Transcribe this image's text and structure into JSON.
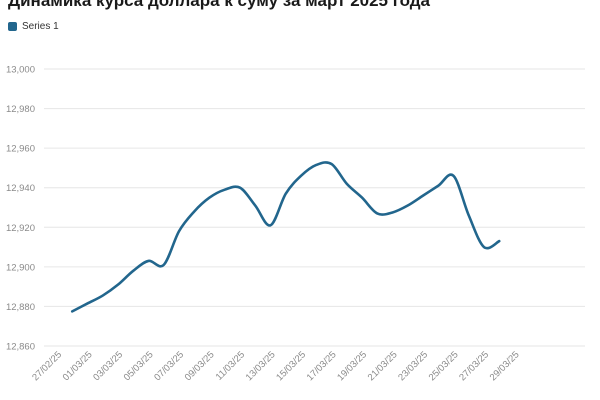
{
  "chart_data": {
    "type": "line",
    "title": "Динамика курса доллара к суму за март 2025 года",
    "legend_position": "top-left",
    "grid": true,
    "colors": {
      "series": "#22668d"
    },
    "x_ticks": [
      "27/02/25",
      "01/03/25",
      "03/03/25",
      "05/03/25",
      "07/03/25",
      "09/03/25",
      "11/03/25",
      "13/03/25",
      "15/03/25",
      "17/03/25",
      "19/03/25",
      "21/03/25",
      "23/03/25",
      "25/03/25",
      "27/03/25",
      "29/03/25"
    ],
    "y_ticks": [
      "12,860",
      "12,880",
      "12,900",
      "12,920",
      "12,940",
      "12,960",
      "12,980",
      "13,000"
    ],
    "ylim": [
      12860,
      13000
    ],
    "xlim": [
      "27/02/25",
      "29/03/25"
    ],
    "series": [
      {
        "name": "Series 1",
        "x": [
          "28/02/25",
          "01/03/25",
          "02/03/25",
          "03/03/25",
          "04/03/25",
          "05/03/25",
          "06/03/25",
          "07/03/25",
          "08/03/25",
          "09/03/25",
          "10/03/25",
          "11/03/25",
          "12/03/25",
          "13/03/25",
          "14/03/25",
          "15/03/25",
          "16/03/25",
          "17/03/25",
          "18/03/25",
          "19/03/25",
          "20/03/25",
          "21/03/25",
          "22/03/25",
          "23/03/25",
          "24/03/25",
          "25/03/25",
          "26/03/25",
          "27/03/25",
          "28/03/25"
        ],
        "values": [
          12877.5,
          12881.5,
          12885.5,
          12891,
          12898,
          12903,
          12901,
          12918,
          12928,
          12935,
          12939,
          12940,
          12931,
          12921,
          12937,
          12946,
          12951.5,
          12952,
          12942,
          12935,
          12927,
          12927.5,
          12931,
          12936,
          12941,
          12946,
          12926,
          12910,
          12913
        ]
      }
    ]
  }
}
